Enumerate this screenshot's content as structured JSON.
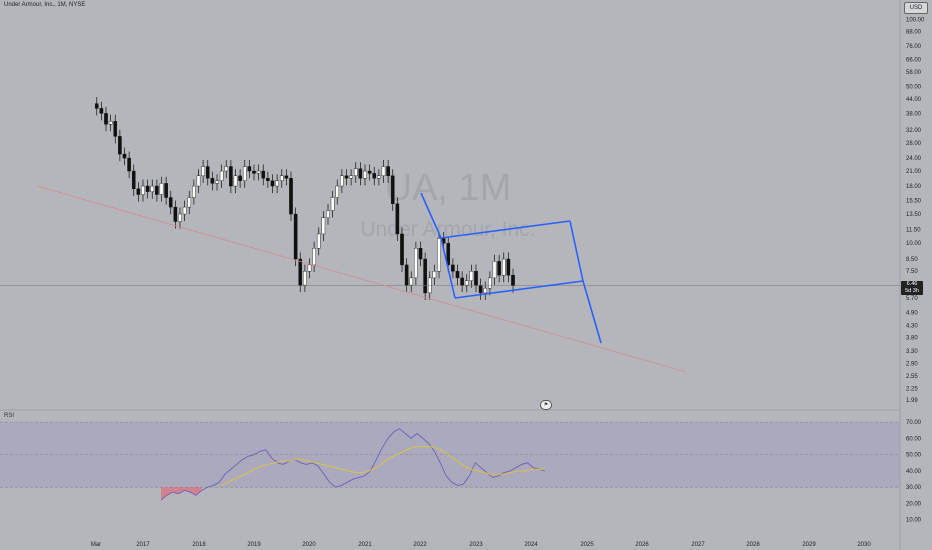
{
  "header": {
    "symbol_line": "Under Armour, Inc., 1M, NYSE"
  },
  "currency": "USD",
  "watermark": {
    "ticker": "UA, 1M",
    "name": "Under Armour, Inc."
  },
  "last_price": {
    "value": "6.46",
    "countdown": "5d 3h"
  },
  "rsi_label": "RSI",
  "colors": {
    "background": "#b4b6bb",
    "up_candle": "#ffffff",
    "down_candle": "#111111",
    "channel": "#2962ff",
    "trendline": "#d98a8a",
    "rsi_line": "#6f5fb8",
    "rsi_ma": "#e0c43a",
    "rsi_band": "#9c91c4",
    "rsi_oversold": "#e8596a"
  },
  "chart_data": [
    {
      "type": "candlestick",
      "title": "Under Armour, Inc., 1M, NYSE",
      "y_scale": "log",
      "ylim": [
        1.8,
        110
      ],
      "y_ticks": [
        100.0,
        88.0,
        76.0,
        66.0,
        58.0,
        50.0,
        44.0,
        38.0,
        32.0,
        28.0,
        24.0,
        21.0,
        18.0,
        15.5,
        13.5,
        11.5,
        10.0,
        8.5,
        7.5,
        5.7,
        4.9,
        4.3,
        3.8,
        3.3,
        2.9,
        2.55,
        2.25,
        1.99
      ],
      "x_ticks": [
        "Mar",
        "2017",
        "2018",
        "2019",
        "2020",
        "2021",
        "2022",
        "2023",
        "2024",
        "2025",
        "2026",
        "2027",
        "2028",
        "2029",
        "2030"
      ],
      "last_price": 6.46,
      "series": [
        {
          "close": [
            40,
            38,
            34,
            35,
            30,
            25,
            24,
            21,
            17.5,
            16.5,
            18,
            17,
            18,
            16.5,
            18.5,
            16,
            14.5,
            12.5,
            13.5,
            14.5,
            16,
            18,
            20,
            22,
            19.5,
            18.5,
            19,
            21,
            22,
            18,
            20,
            19,
            22,
            21,
            20.5,
            21,
            19.5,
            19,
            18,
            19,
            20,
            19.5,
            13.5,
            8.5,
            6.5,
            7.5,
            8,
            9.5,
            11,
            13,
            14,
            16,
            18,
            20,
            19.5,
            20,
            21.5,
            19.5,
            21,
            20.5,
            19.5,
            20,
            22,
            20,
            15,
            11,
            8,
            6.5,
            7,
            9.5,
            8.5,
            6,
            7,
            7.5,
            10.5,
            10,
            8,
            7.5,
            7,
            6.5,
            6.8,
            7.5,
            6.5,
            6,
            6.3,
            7,
            8.3,
            7.2,
            8.5,
            7.2,
            6.46
          ]
        }
      ]
    },
    {
      "type": "line",
      "title": "RSI",
      "y_ticks": [
        70.0,
        60.0,
        50.0,
        40.0,
        30.0,
        20.0,
        10.0
      ],
      "ylim": [
        0,
        75
      ],
      "series": [
        {
          "values": [
            22,
            25,
            27,
            26,
            28,
            27,
            25,
            28,
            30,
            31,
            33,
            38,
            41,
            44,
            47,
            49,
            50,
            52,
            53,
            48,
            45,
            44,
            46,
            47,
            45,
            44,
            45,
            43,
            38,
            33,
            30,
            31,
            33,
            35,
            36,
            37,
            40,
            47,
            54,
            60,
            64,
            66,
            63,
            60,
            63,
            60,
            57,
            52,
            45,
            37,
            33,
            31,
            32,
            37,
            45,
            42,
            39,
            36,
            37,
            39,
            40,
            42,
            44,
            45,
            42,
            41,
            40
          ]
        },
        {
          "values": [
            31,
            33,
            35,
            37,
            39,
            41,
            43,
            44,
            45,
            46,
            46,
            47,
            47,
            46,
            45,
            44,
            43,
            42,
            41,
            40,
            39,
            39,
            40,
            42,
            45,
            48,
            50,
            52,
            54,
            55,
            55,
            55,
            54,
            52,
            49,
            46,
            43,
            41,
            40,
            39,
            38,
            38,
            38,
            39,
            40,
            40,
            41,
            41,
            41
          ]
        }
      ]
    }
  ]
}
